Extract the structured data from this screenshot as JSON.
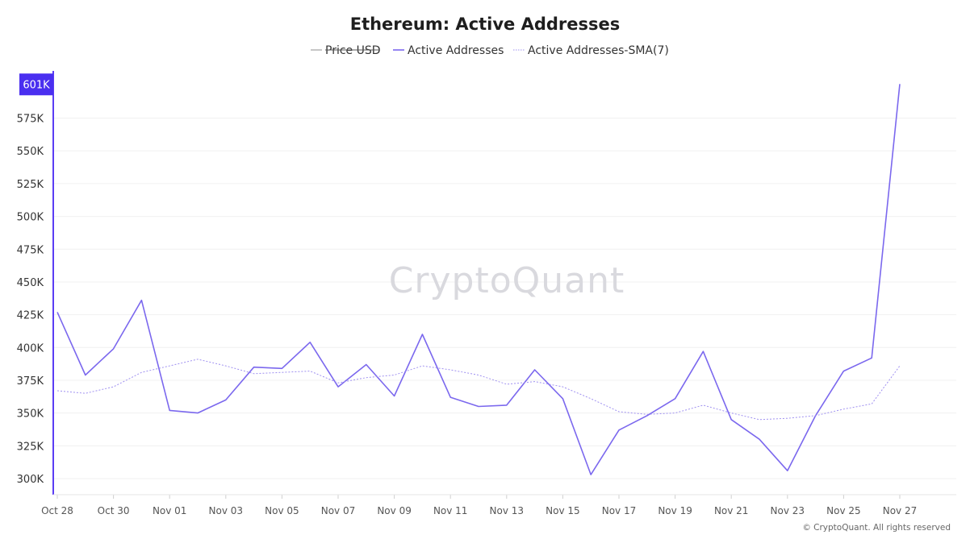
{
  "colors": {
    "series": "#7b68ee",
    "sma": "#9f90f0",
    "price": "#a0a0a0",
    "axis_accent": "#5b3df5",
    "badge": "#4a2ff0",
    "grid": "#f0f0f0"
  },
  "watermark": "CryptoQuant",
  "footer": "© CryptoQuant. All rights reserved",
  "chart_data": {
    "type": "line",
    "title": "Ethereum: Active Addresses",
    "xlabel": "",
    "ylabel": "",
    "legend": [
      {
        "name": "Price USD",
        "hidden": true
      },
      {
        "name": "Active Addresses"
      },
      {
        "name": "Active Addresses-SMA(7)"
      }
    ],
    "ylim": [
      300000,
      611000
    ],
    "y_ticks": [
      300000,
      325000,
      350000,
      375000,
      400000,
      425000,
      450000,
      475000,
      500000,
      525000,
      550000,
      575000
    ],
    "y_tick_labels": [
      "300K",
      "325K",
      "350K",
      "375K",
      "400K",
      "425K",
      "450K",
      "475K",
      "500K",
      "525K",
      "550K",
      "575K"
    ],
    "current_value_label": "601K",
    "current_value": 601000,
    "x_tick_labels": [
      "Oct 28",
      "Oct 30",
      "Nov 01",
      "Nov 03",
      "Nov 05",
      "Nov 07",
      "Nov 09",
      "Nov 11",
      "Nov 13",
      "Nov 15",
      "Nov 17",
      "Nov 19",
      "Nov 21",
      "Nov 23",
      "Nov 25",
      "Nov 27"
    ],
    "x": [
      "Oct 28",
      "Oct 29",
      "Oct 30",
      "Oct 31",
      "Nov 01",
      "Nov 02",
      "Nov 03",
      "Nov 04",
      "Nov 05",
      "Nov 06",
      "Nov 07",
      "Nov 08",
      "Nov 09",
      "Nov 10",
      "Nov 11",
      "Nov 12",
      "Nov 13",
      "Nov 14",
      "Nov 15",
      "Nov 16",
      "Nov 17",
      "Nov 18",
      "Nov 19",
      "Nov 20",
      "Nov 21",
      "Nov 22",
      "Nov 23",
      "Nov 24",
      "Nov 25",
      "Nov 26",
      "Nov 27"
    ],
    "series": [
      {
        "name": "Active Addresses",
        "style": "solid",
        "values": [
          427000,
          379000,
          399000,
          436000,
          352000,
          350000,
          360000,
          385000,
          384000,
          404000,
          370000,
          387000,
          363000,
          410000,
          362000,
          355000,
          356000,
          383000,
          361000,
          303000,
          337000,
          348000,
          361000,
          397000,
          345000,
          330000,
          306000,
          348000,
          382000,
          392000,
          601000
        ]
      },
      {
        "name": "Active Addresses-SMA(7)",
        "style": "dotted",
        "values": [
          367000,
          365000,
          370000,
          381000,
          386000,
          391000,
          386000,
          380000,
          381000,
          382000,
          373000,
          377000,
          379000,
          386000,
          383000,
          379000,
          372000,
          374000,
          370000,
          361000,
          351000,
          349000,
          350000,
          356000,
          350000,
          345000,
          346000,
          348000,
          353000,
          357000,
          386000
        ]
      }
    ]
  }
}
